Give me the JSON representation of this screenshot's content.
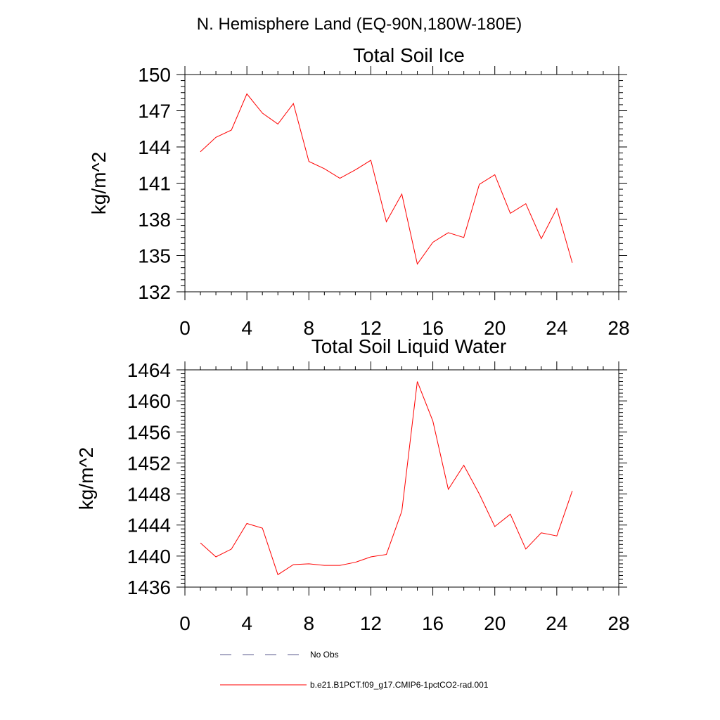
{
  "page_title": "N. Hemisphere Land (EQ-90N,180W-180E)",
  "colors": {
    "model": "#ff0000",
    "obs": "#5a5a8c",
    "axis": "#000000"
  },
  "legend": {
    "obs_label": "No Obs",
    "model_label": "b.e21.B1PCT.f09_g17.CMIP6-1pctCO2-rad.001"
  },
  "chart_data": [
    {
      "type": "line",
      "title": "Total Soil Ice",
      "xlabel": "",
      "ylabel": "kg/m^2",
      "xlim": [
        0,
        28
      ],
      "ylim": [
        132,
        150
      ],
      "xticks": [
        0,
        4,
        8,
        12,
        16,
        20,
        24,
        28
      ],
      "yticks": [
        132,
        135,
        138,
        141,
        144,
        147,
        150
      ],
      "grid": false,
      "series": [
        {
          "name": "b.e21.B1PCT.f09_g17.CMIP6-1pctCO2-rad.001",
          "x": [
            1,
            2,
            3,
            4,
            5,
            6,
            7,
            8,
            9,
            10,
            11,
            12,
            13,
            14,
            15,
            16,
            17,
            18,
            19,
            20,
            21,
            22,
            23,
            24,
            25
          ],
          "y": [
            143.6,
            144.8,
            145.4,
            148.4,
            146.8,
            145.9,
            147.6,
            142.8,
            142.2,
            141.4,
            142.1,
            142.9,
            137.8,
            140.1,
            134.3,
            136.1,
            136.9,
            136.5,
            140.9,
            141.7,
            138.5,
            139.3,
            136.4,
            138.9,
            134.4
          ]
        }
      ]
    },
    {
      "type": "line",
      "title": "Total Soil Liquid Water",
      "xlabel": "",
      "ylabel": "kg/m^2",
      "xlim": [
        0,
        28
      ],
      "ylim": [
        1436,
        1464
      ],
      "xticks": [
        0,
        4,
        8,
        12,
        16,
        20,
        24,
        28
      ],
      "yticks": [
        1436,
        1440,
        1444,
        1448,
        1452,
        1456,
        1460,
        1464
      ],
      "grid": false,
      "series": [
        {
          "name": "b.e21.B1PCT.f09_g17.CMIP6-1pctCO2-rad.001",
          "x": [
            1,
            2,
            3,
            4,
            5,
            6,
            7,
            8,
            9,
            10,
            11,
            12,
            13,
            14,
            15,
            16,
            17,
            18,
            19,
            20,
            21,
            22,
            23,
            24,
            25
          ],
          "y": [
            1441.7,
            1439.9,
            1440.9,
            1444.2,
            1443.6,
            1437.6,
            1438.9,
            1439.0,
            1438.8,
            1438.8,
            1439.2,
            1439.9,
            1440.2,
            1445.8,
            1462.5,
            1457.4,
            1448.6,
            1451.7,
            1448.0,
            1443.8,
            1445.4,
            1440.9,
            1443.0,
            1442.6,
            1448.4
          ]
        }
      ]
    }
  ]
}
